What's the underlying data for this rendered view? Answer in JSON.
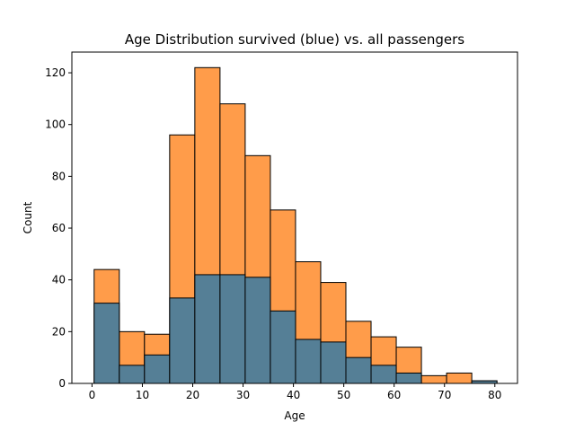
{
  "chart_data": {
    "type": "bar",
    "title": "Age Distribution survived (blue) vs. all passengers",
    "xlabel": "Age",
    "ylabel": "Count",
    "xlim": [
      -4,
      84.5
    ],
    "ylim": [
      0,
      128
    ],
    "xticks": [
      0,
      10,
      20,
      30,
      40,
      50,
      60,
      70,
      80
    ],
    "yticks": [
      0,
      20,
      40,
      60,
      80,
      100,
      120
    ],
    "grid": false,
    "legend": "none",
    "bin_edges": [
      0.42,
      5.42,
      10.42,
      15.42,
      20.42,
      25.42,
      30.42,
      35.42,
      40.42,
      45.42,
      50.42,
      55.42,
      60.42,
      65.42,
      70.42,
      75.42,
      80.42
    ],
    "series": [
      {
        "role": "all passengers",
        "color": "#ff9c4a",
        "values": [
          44,
          20,
          19,
          96,
          122,
          108,
          88,
          67,
          47,
          39,
          24,
          18,
          14,
          3,
          4,
          1
        ]
      },
      {
        "role": "survived",
        "color": "#557f96",
        "values": [
          31,
          7,
          11,
          33,
          42,
          42,
          41,
          28,
          17,
          16,
          10,
          7,
          4,
          0,
          0,
          1
        ]
      }
    ]
  }
}
